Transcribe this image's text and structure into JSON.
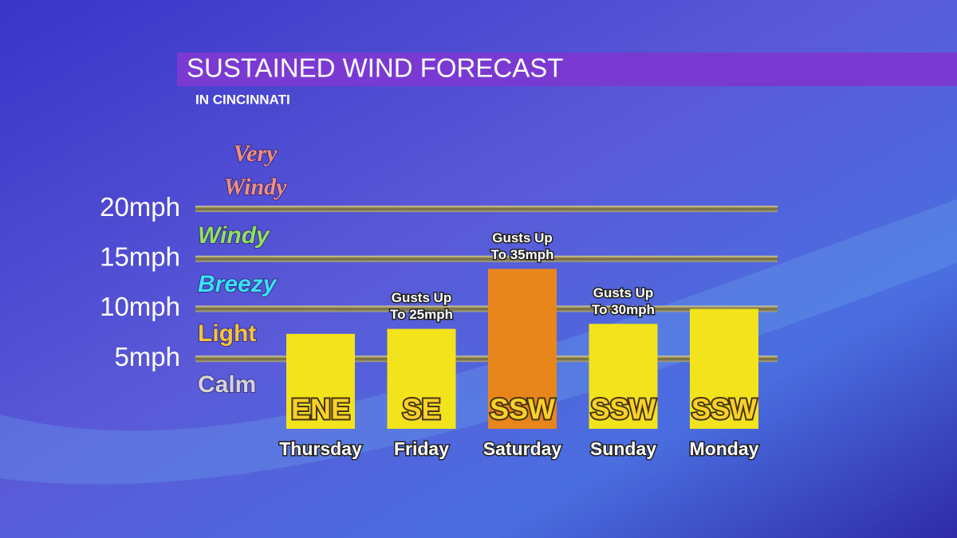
{
  "chart_data": {
    "type": "bar",
    "title": "SUSTAINED WIND FORECAST",
    "subtitle": "IN CINCINNATI",
    "categories": [
      "Thursday",
      "Friday",
      "Saturday",
      "Sunday",
      "Monday"
    ],
    "values": [
      7.5,
      8,
      14,
      8.5,
      10
    ],
    "colors": [
      "#f2e31c",
      "#f2e31c",
      "#e8861c",
      "#f2e31c",
      "#f2e31c"
    ],
    "directions": [
      "ENE",
      "SE",
      "SSW",
      "SSW",
      "SSW"
    ],
    "gusts": [
      null,
      [
        "Gusts Up",
        "To 25mph"
      ],
      [
        "Gusts Up",
        "To 35mph"
      ],
      [
        "Gusts Up",
        "To 30mph"
      ],
      null
    ],
    "levels": [
      {
        "label": [
          "Very",
          "Windy"
        ],
        "color": "#f0907c"
      },
      {
        "label": [
          "Windy"
        ],
        "color": "#8fe25a"
      },
      {
        "label": [
          "Breezy"
        ],
        "color": "#38e2f2"
      },
      {
        "label": [
          "Light"
        ],
        "color": "#f7c437"
      },
      {
        "label": [
          "Calm"
        ],
        "color": "#d4d4d4"
      }
    ],
    "ylim": [
      -2,
      22
    ],
    "yticks": [
      {
        "value": 5,
        "label": "5mph"
      },
      {
        "value": 10,
        "label": "10mph"
      },
      {
        "value": 15,
        "label": "15mph"
      },
      {
        "value": 20,
        "label": "20mph"
      }
    ],
    "grid": true
  }
}
